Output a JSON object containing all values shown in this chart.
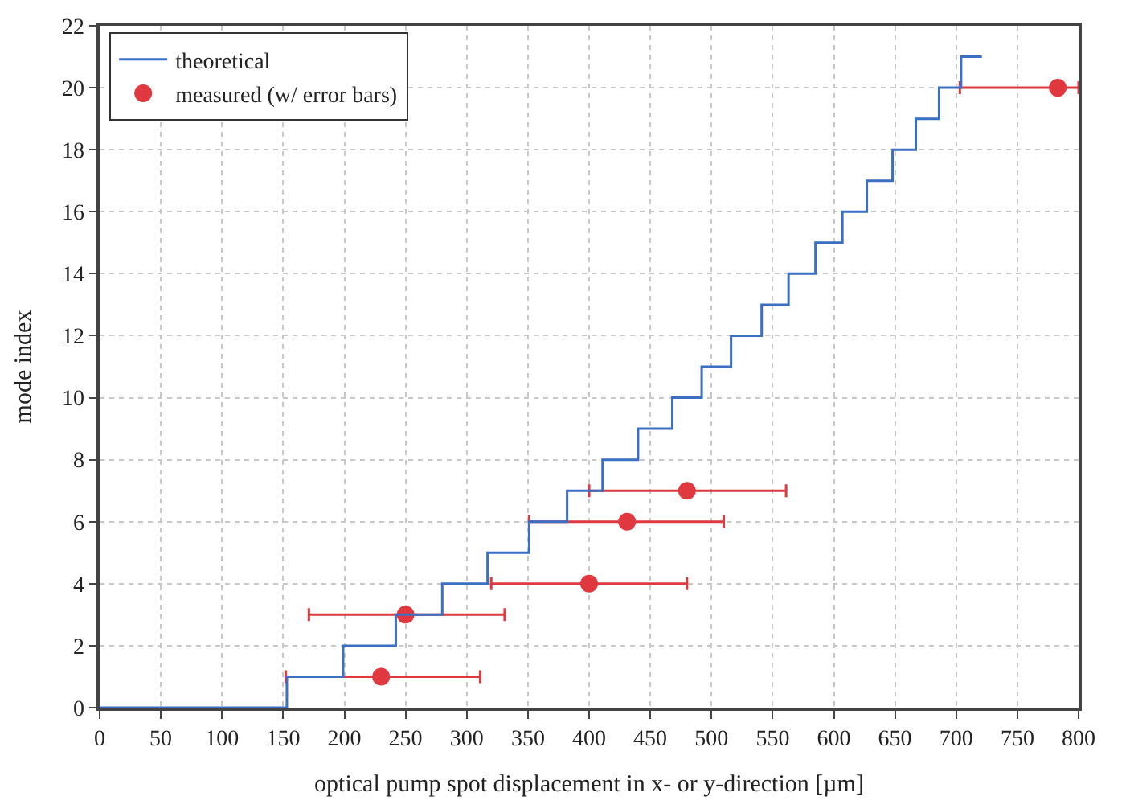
{
  "chart_data": {
    "type": "step",
    "xlabel": "optical pump spot displacement in x- or y-direction [µm]",
    "ylabel": "mode index",
    "xlim": [
      0,
      800
    ],
    "ylim": [
      0,
      22
    ],
    "xticks": [
      0,
      50,
      100,
      150,
      200,
      250,
      300,
      350,
      400,
      450,
      500,
      550,
      600,
      650,
      700,
      750,
      800
    ],
    "yticks": [
      0,
      2,
      4,
      6,
      8,
      10,
      12,
      14,
      16,
      18,
      20,
      22
    ],
    "grid": true,
    "legend": "top left",
    "series": [
      {
        "name": "theoretical",
        "color": "#3a6fc4",
        "marker": "none",
        "x": [
          0,
          153,
          199,
          242,
          280,
          317,
          351,
          382,
          411,
          440,
          468,
          492,
          516,
          541,
          563,
          585,
          607,
          627,
          648,
          667,
          686,
          704,
          721
        ],
        "values": [
          0,
          1,
          2,
          3,
          4,
          5,
          6,
          7,
          8,
          9,
          10,
          11,
          12,
          13,
          14,
          15,
          16,
          17,
          18,
          19,
          20,
          21,
          21
        ]
      },
      {
        "name": "measured (w/ error bars)",
        "type": "scatter",
        "color": "#e0383f",
        "marker": "circle",
        "x": [
          230,
          250,
          400,
          431,
          480,
          783
        ],
        "values": [
          1,
          3,
          4,
          6,
          7,
          20
        ],
        "xerrors": [
          [
            152,
            311
          ],
          [
            171,
            331
          ],
          [
            320,
            480
          ],
          [
            351,
            510
          ],
          [
            400,
            561
          ],
          [
            703,
            800
          ]
        ]
      }
    ]
  }
}
